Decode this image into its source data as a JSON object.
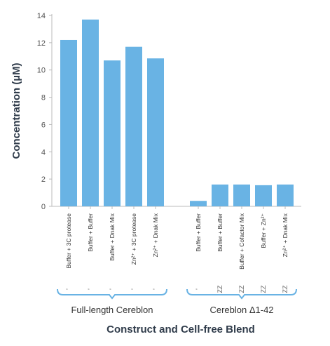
{
  "chart_data": {
    "type": "bar",
    "ylabel": "Concentration (µM)",
    "xlabel": "Construct and Cell-free Blend",
    "ylim": [
      0,
      14
    ],
    "yticks": [
      0,
      2,
      4,
      6,
      8,
      10,
      12,
      14
    ],
    "grid": false,
    "bar_color": "#69b3e4",
    "bracket_color": "#69b3e4",
    "groups": [
      {
        "name": "Full-length Cereblon",
        "categories": [
          "Buffer + 3C protease",
          "Buffer + Buffer",
          "Buffer + Dnak Mix",
          "Zn²⁺ + 3C protease",
          "Zn²⁺ + Dnak Mix"
        ],
        "values": [
          12.2,
          13.7,
          10.7,
          11.7,
          10.85
        ],
        "markers": [
          "'",
          "'",
          "'",
          "'",
          "'"
        ]
      },
      {
        "name": "Cereblon Δ1-42",
        "categories": [
          "Buffer + Buffer",
          "Buffer + Buffer",
          "Buffer + Cofactor Mix",
          "Buffer + Zn²⁺",
          "Zn²⁺ + Dnak Mix"
        ],
        "values": [
          0.4,
          1.6,
          1.6,
          1.55,
          1.6
        ],
        "markers": [
          "'",
          "ZZ",
          "ZZ",
          "ZZ",
          "ZZ"
        ]
      }
    ]
  }
}
